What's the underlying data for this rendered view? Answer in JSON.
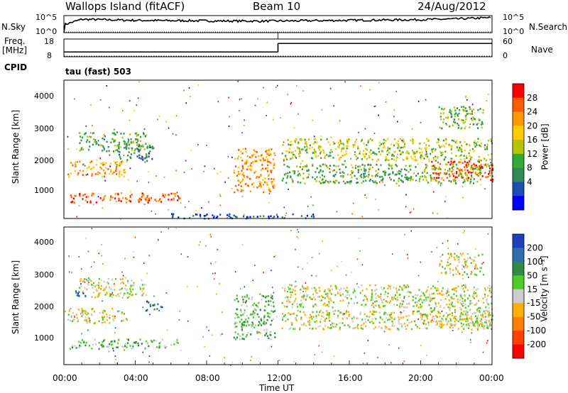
{
  "header": {
    "station": "Wallops Island (fitACF)",
    "beam": "Beam 10",
    "date": "24/Aug/2012"
  },
  "left_labels": {
    "nsky": "N.Sky",
    "freq": "Freq.",
    "mhz": "[MHz]",
    "cpid": "CPID"
  },
  "right_labels": {
    "nsearch": "N.Search",
    "nave": "Nave"
  },
  "cpid_text": "tau (fast) 503",
  "chart_data": [
    {
      "type": "line",
      "name": "noise",
      "left_ticks": [
        "10^5",
        "10^0"
      ],
      "right_ticks": [
        "10^5",
        "10^0"
      ],
      "x": [
        0,
        1,
        2,
        3,
        4,
        5,
        6,
        7,
        8,
        9,
        10,
        11,
        12,
        13,
        14,
        15,
        16,
        17,
        18,
        19,
        20,
        21,
        22,
        23,
        24
      ],
      "series": [
        {
          "values": [
            0.4,
            0.72,
            0.7,
            0.68,
            0.66,
            0.65,
            0.64,
            0.64,
            0.63,
            0.62,
            0.62,
            0.61,
            0.62,
            0.63,
            0.64,
            0.65,
            0.66,
            0.67,
            0.68,
            0.69,
            0.7,
            0.72,
            0.74,
            0.78,
            0.82
          ]
        }
      ]
    },
    {
      "type": "line",
      "name": "frequency-nave",
      "left_ticks": [
        "18",
        "8"
      ],
      "right_ticks": [
        "60",
        "0"
      ],
      "freq_steps": [
        {
          "from": 0,
          "to": 12,
          "value": 10.7
        },
        {
          "from": 12,
          "to": 24,
          "value": 15.5
        }
      ],
      "nave_value": 2
    },
    {
      "type": "heatmap",
      "name": "power",
      "ylabel": "Slant Range [km]",
      "yticks": [
        1000,
        2000,
        3000,
        4000
      ],
      "ylim": [
        180,
        4500
      ],
      "xlim": [
        0,
        24
      ],
      "colorbar_label": "Power [dB]",
      "colorbar_ticks": [
        "28",
        "24",
        "20",
        "16",
        "12",
        "8",
        "4"
      ],
      "colors": [
        "#0000ff",
        "#1f4db3",
        "#2f8a5a",
        "#35a83a",
        "#b7c400",
        "#ffcc00",
        "#ff9900",
        "#ff5a00",
        "#ff0000"
      ],
      "features": [
        {
          "x": [
            0.2,
            3.5
          ],
          "range": [
            1500,
            2000
          ],
          "level": 6
        },
        {
          "x": [
            0.3,
            6.5
          ],
          "range": [
            700,
            1000
          ],
          "level": 7
        },
        {
          "x": [
            0.8,
            4.6
          ],
          "range": [
            2300,
            2900
          ],
          "level": 3
        },
        {
          "x": [
            3.0,
            5.0
          ],
          "range": [
            2000,
            2500
          ],
          "level": 2
        },
        {
          "x": [
            9.5,
            11.8
          ],
          "range": [
            1000,
            2400
          ],
          "level": 6
        },
        {
          "x": [
            12.2,
            24
          ],
          "range": [
            2000,
            2700
          ],
          "level": 4
        },
        {
          "x": [
            12.2,
            24
          ],
          "range": [
            1300,
            1900
          ],
          "level": 3
        },
        {
          "x": [
            20.5,
            24
          ],
          "range": [
            1400,
            2000
          ],
          "level": 7
        },
        {
          "x": [
            21,
            23.5
          ],
          "range": [
            3000,
            3700
          ],
          "level": 3
        },
        {
          "x": [
            6.0,
            14.0
          ],
          "range": [
            200,
            350
          ],
          "level": 1
        }
      ]
    },
    {
      "type": "heatmap",
      "name": "velocity",
      "ylabel": "Slant Range [km]",
      "yticks": [
        1000,
        2000,
        3000,
        4000
      ],
      "ylim": [
        180,
        4500
      ],
      "xlim": [
        0,
        24
      ],
      "xlabel": "Time UT",
      "xticks": [
        "00:00",
        "04:00",
        "08:00",
        "12:00",
        "16:00",
        "20:00",
        "00:00"
      ],
      "colorbar_label": "Velocity [m s⁻¹]",
      "colorbar_ticks": [
        "200",
        "100",
        "50",
        "15",
        "-15",
        "-50",
        "-100",
        "-200"
      ],
      "colors": [
        "#1f3fbf",
        "#2f6db0",
        "#2e8a45",
        "#50cc28",
        "#cccccc",
        "#ffb000",
        "#ff8000",
        "#ff4000",
        "#ff0000"
      ],
      "features": [
        {
          "x": [
            0.2,
            3.5
          ],
          "range": [
            1500,
            2000
          ],
          "level": 4
        },
        {
          "x": [
            0.3,
            6.5
          ],
          "range": [
            700,
            1000
          ],
          "level": 3
        },
        {
          "x": [
            0.8,
            4.6
          ],
          "range": [
            2300,
            2900
          ],
          "level": 4
        },
        {
          "x": [
            4.5,
            5.5
          ],
          "range": [
            1900,
            2200
          ],
          "level": 1
        },
        {
          "x": [
            9.5,
            11.8
          ],
          "range": [
            1000,
            2400
          ],
          "level": 3
        },
        {
          "x": [
            12.2,
            24
          ],
          "range": [
            2000,
            2700
          ],
          "level": 4
        },
        {
          "x": [
            12.2,
            24
          ],
          "range": [
            1300,
            1900
          ],
          "level": 4
        },
        {
          "x": [
            20.5,
            24
          ],
          "range": [
            1400,
            2000
          ],
          "level": 4
        },
        {
          "x": [
            21,
            23.5
          ],
          "range": [
            3000,
            3700
          ],
          "level": 4
        },
        {
          "x": [
            0.6,
            1.3
          ],
          "range": [
            2300,
            2600
          ],
          "level": 1
        }
      ]
    }
  ]
}
